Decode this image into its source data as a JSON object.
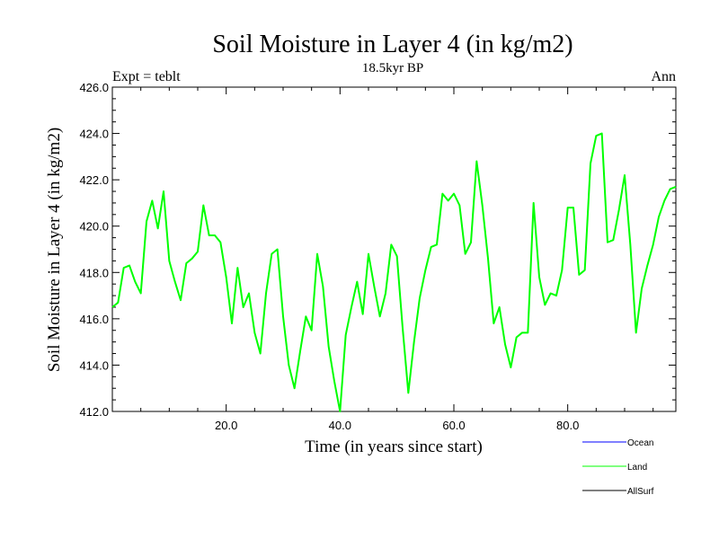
{
  "chart_data": {
    "type": "line",
    "title": "Soil Moisture in Layer 4 (in kg/m2)",
    "subtitle": "18.5kyr BP",
    "left_label": "Expt = teblt",
    "right_label": "Ann",
    "xlabel": "Time (in years since start)",
    "ylabel": "Soil Moisture in Layer 4 (in kg/m2)",
    "xlim": [
      0,
      99
    ],
    "ylim": [
      412.0,
      426.0
    ],
    "x_ticks": [
      20.0,
      40.0,
      60.0,
      80.0
    ],
    "x_tick_labels": [
      "20.0",
      "40.0",
      "60.0",
      "80.0"
    ],
    "y_ticks": [
      412.0,
      414.0,
      416.0,
      418.0,
      420.0,
      422.0,
      424.0,
      426.0
    ],
    "y_tick_labels": [
      "412.0",
      "414.0",
      "416.0",
      "418.0",
      "420.0",
      "422.0",
      "424.0",
      "426.0"
    ],
    "legend": [
      {
        "name": "Ocean",
        "color": "#0000ff"
      },
      {
        "name": "Land",
        "color": "#00ff00"
      },
      {
        "name": "AllSurf",
        "color": "#000000"
      }
    ],
    "series": [
      {
        "name": "Land",
        "color": "#00ff00",
        "x": [
          0,
          1,
          2,
          3,
          4,
          5,
          6,
          7,
          8,
          9,
          10,
          11,
          12,
          13,
          14,
          15,
          16,
          17,
          18,
          19,
          20,
          21,
          22,
          23,
          24,
          25,
          26,
          27,
          28,
          29,
          30,
          31,
          32,
          33,
          34,
          35,
          36,
          37,
          38,
          39,
          40,
          41,
          42,
          43,
          44,
          45,
          46,
          47,
          48,
          49,
          50,
          51,
          52,
          53,
          54,
          55,
          56,
          57,
          58,
          59,
          60,
          61,
          62,
          63,
          64,
          65,
          66,
          67,
          68,
          69,
          70,
          71,
          72,
          73,
          74,
          75,
          76,
          77,
          78,
          79,
          80,
          81,
          82,
          83,
          84,
          85,
          86,
          87,
          88,
          89,
          90,
          91,
          92,
          93,
          94,
          95,
          96,
          97,
          98,
          99
        ],
        "values": [
          416.5,
          416.7,
          418.2,
          418.3,
          417.6,
          417.1,
          420.2,
          421.1,
          419.9,
          421.5,
          418.5,
          417.6,
          416.8,
          418.4,
          418.6,
          418.9,
          420.9,
          419.6,
          419.6,
          419.3,
          417.8,
          415.8,
          418.2,
          416.5,
          417.1,
          415.4,
          414.5,
          417.1,
          418.8,
          419.0,
          416.1,
          414.0,
          413.0,
          414.6,
          416.1,
          415.5,
          418.8,
          417.4,
          414.8,
          413.3,
          412.0,
          415.3,
          416.5,
          417.6,
          416.2,
          418.8,
          417.4,
          416.1,
          417.1,
          419.2,
          418.7,
          415.6,
          412.8,
          415.0,
          416.9,
          418.1,
          419.1,
          419.2,
          421.4,
          421.1,
          421.4,
          420.9,
          418.8,
          419.3,
          422.8,
          420.9,
          418.6,
          415.8,
          416.5,
          414.9,
          413.9,
          415.2,
          415.4,
          415.4,
          421.0,
          417.8,
          416.6,
          417.1,
          417.0,
          418.1,
          420.8,
          420.8,
          417.9,
          418.1,
          422.7,
          423.9,
          424.0,
          419.3,
          419.4,
          420.7,
          422.2,
          419.2,
          415.4,
          417.3,
          418.3,
          419.2,
          420.4,
          421.1,
          421.6,
          421.7
        ]
      }
    ]
  }
}
